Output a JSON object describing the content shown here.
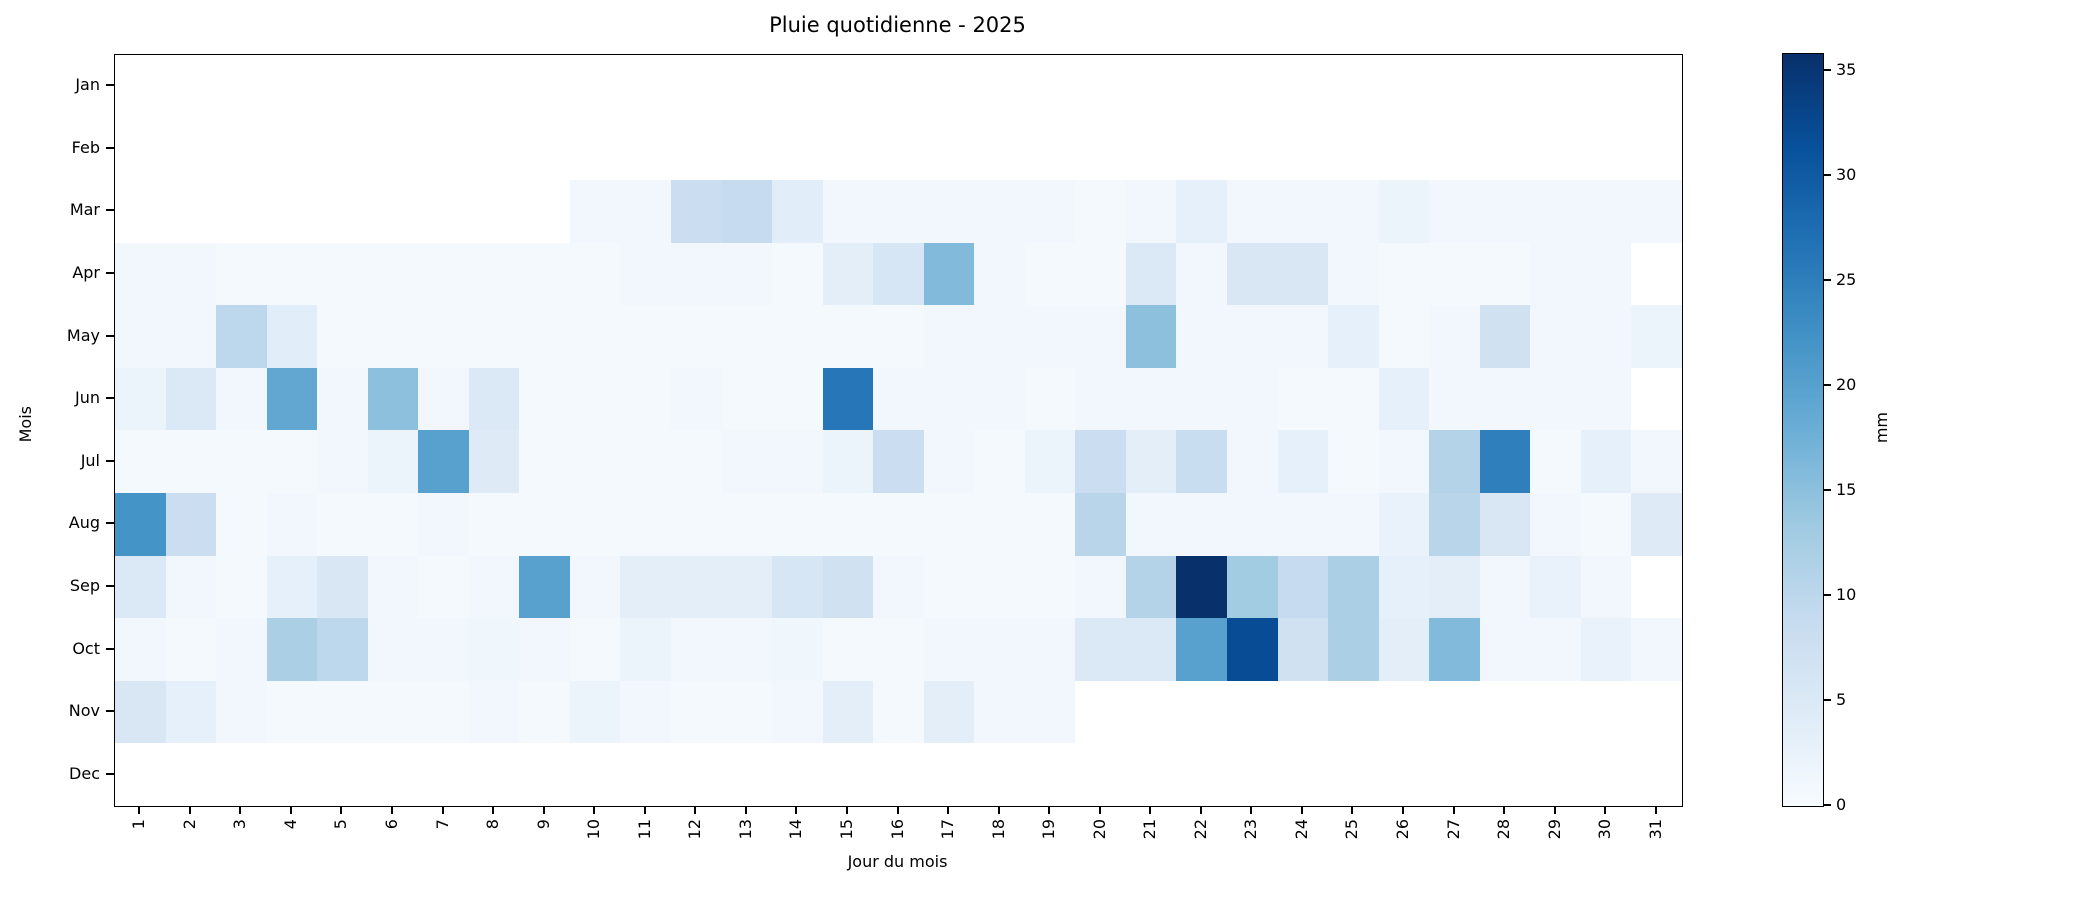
{
  "chart_data": {
    "type": "heatmap",
    "title": "Pluie quotidienne - 2025",
    "xlabel": "Jour du mois",
    "ylabel": "Mois",
    "x_ticks": [
      1,
      2,
      3,
      4,
      5,
      6,
      7,
      8,
      9,
      10,
      11,
      12,
      13,
      14,
      15,
      16,
      17,
      18,
      19,
      20,
      21,
      22,
      23,
      24,
      25,
      26,
      27,
      28,
      29,
      30,
      31
    ],
    "y_ticks": [
      "Jan",
      "Feb",
      "Mar",
      "Apr",
      "May",
      "Jun",
      "Jul",
      "Aug",
      "Sep",
      "Oct",
      "Nov",
      "Dec"
    ],
    "colorbar": {
      "label": "mm",
      "ticks": [
        0,
        5,
        10,
        15,
        20,
        25,
        30,
        35
      ],
      "vmin": 0,
      "vmax": 35.8,
      "colormap": "Blues",
      "colormap_anchors": [
        "#f7fbff",
        "#deebf7",
        "#c6dbef",
        "#9ecae1",
        "#6baed6",
        "#4292c6",
        "#2171b5",
        "#08519c",
        "#08306b"
      ]
    },
    "null_means": "no data (white cell)",
    "matrix": [
      [
        null,
        null,
        null,
        null,
        null,
        null,
        null,
        null,
        null,
        null,
        null,
        null,
        null,
        null,
        null,
        null,
        null,
        null,
        null,
        null,
        null,
        null,
        null,
        null,
        null,
        null,
        null,
        null,
        null,
        null,
        null
      ],
      [
        null,
        null,
        null,
        null,
        null,
        null,
        null,
        null,
        null,
        null,
        null,
        null,
        null,
        null,
        null,
        null,
        null,
        null,
        null,
        null,
        null,
        null,
        null,
        null,
        null,
        null,
        null,
        null,
        null,
        null,
        null
      ],
      [
        null,
        null,
        null,
        null,
        null,
        null,
        null,
        null,
        null,
        1,
        1,
        8,
        9,
        4,
        1,
        1,
        1,
        1,
        1,
        0.5,
        1,
        3,
        1,
        1,
        1,
        2,
        1,
        1,
        1,
        1,
        1
      ],
      [
        1,
        1,
        0.5,
        0.5,
        0.5,
        0.5,
        0.5,
        0.5,
        0.5,
        0.5,
        1,
        1,
        1,
        0.5,
        3.5,
        6,
        16,
        1,
        0.5,
        0.5,
        5,
        1,
        5.5,
        5.5,
        1,
        0.5,
        0.5,
        0.5,
        1,
        1,
        null
      ],
      [
        1,
        1,
        10,
        4,
        0.5,
        0.5,
        0.5,
        0.5,
        0.5,
        0.5,
        0.5,
        0.5,
        0.5,
        0.5,
        0.5,
        0.5,
        1,
        1,
        1,
        1,
        15,
        1,
        1,
        1,
        3,
        0.5,
        1,
        7,
        1,
        1,
        2
      ],
      [
        2,
        5,
        1,
        19,
        1,
        15,
        1,
        5,
        0.5,
        0.5,
        0.5,
        1,
        0.5,
        0.5,
        26,
        1,
        1,
        1,
        0.5,
        1,
        1,
        1,
        1,
        0.5,
        0.5,
        3,
        1,
        1,
        1,
        1,
        null
      ],
      [
        0.5,
        0.5,
        0.5,
        0.5,
        1,
        2,
        20,
        4.5,
        0.5,
        0.5,
        0.5,
        0.5,
        1,
        1,
        2,
        8,
        1,
        0.5,
        2,
        8,
        3.5,
        8.5,
        1,
        3,
        0.5,
        1,
        11,
        25,
        0.5,
        3,
        1
      ],
      [
        22,
        8,
        0.5,
        1,
        0.5,
        0.5,
        1,
        0.5,
        0.5,
        0.5,
        0.5,
        0.5,
        0.5,
        0.5,
        0.5,
        0.5,
        0.5,
        0.5,
        0.5,
        10.5,
        1,
        1,
        1,
        1,
        1,
        2.5,
        10.5,
        5.5,
        1,
        0.5,
        4.5
      ],
      [
        5,
        1,
        0.5,
        3,
        5.5,
        1,
        0.5,
        1,
        20,
        1,
        3.5,
        3.5,
        3.5,
        6,
        7,
        1,
        0.5,
        0.5,
        0.5,
        1,
        11,
        35.8,
        13,
        9,
        12,
        3,
        3.5,
        1,
        2.5,
        1,
        null
      ],
      [
        1,
        0.5,
        1,
        12,
        10,
        1,
        1,
        1.5,
        1,
        0.5,
        2,
        1,
        1,
        1.5,
        0.5,
        0.5,
        1,
        1,
        1,
        5,
        5,
        20,
        32,
        7,
        12,
        3.5,
        16,
        1,
        1,
        2.5,
        1
      ],
      [
        5.5,
        3,
        1,
        0.5,
        0.5,
        0.5,
        0.5,
        1,
        0.5,
        2,
        1,
        0.5,
        0.5,
        1,
        3.5,
        0.5,
        3.5,
        1,
        1,
        null,
        null,
        null,
        null,
        null,
        null,
        null,
        null,
        null,
        null,
        null,
        null
      ],
      [
        null,
        null,
        null,
        null,
        null,
        null,
        null,
        null,
        null,
        null,
        null,
        null,
        null,
        null,
        null,
        null,
        null,
        null,
        null,
        null,
        null,
        null,
        null,
        null,
        null,
        null,
        null,
        null,
        null,
        null,
        null
      ]
    ]
  }
}
